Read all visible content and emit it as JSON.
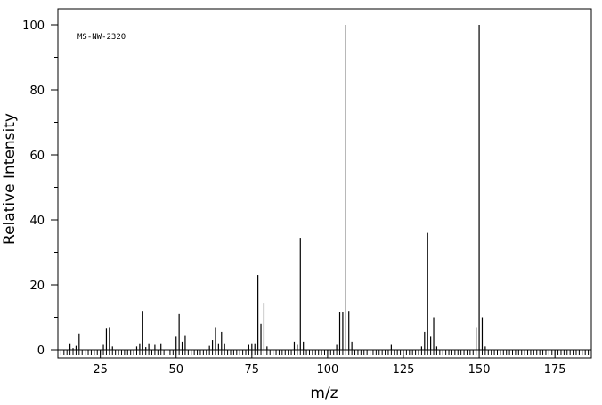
{
  "chart_data": {
    "type": "bar",
    "title": "",
    "annotation": "MS-NW-2320",
    "xlabel": "m/z",
    "ylabel": "Relative Intensity",
    "xlim": [
      11,
      187
    ],
    "ylim": [
      0,
      105
    ],
    "x_ticks": [
      25,
      50,
      75,
      100,
      125,
      150,
      175
    ],
    "y_ticks": [
      0,
      20,
      40,
      60,
      80,
      100
    ],
    "grid": false,
    "peaks": [
      {
        "mz": 15,
        "intensity": 2.0
      },
      {
        "mz": 16,
        "intensity": 0.5
      },
      {
        "mz": 17,
        "intensity": 1.2
      },
      {
        "mz": 18,
        "intensity": 5.0
      },
      {
        "mz": 26,
        "intensity": 1.5
      },
      {
        "mz": 27,
        "intensity": 6.5
      },
      {
        "mz": 28,
        "intensity": 7.0
      },
      {
        "mz": 29,
        "intensity": 1.0
      },
      {
        "mz": 37,
        "intensity": 1.0
      },
      {
        "mz": 38,
        "intensity": 2.0
      },
      {
        "mz": 39,
        "intensity": 12.0
      },
      {
        "mz": 40,
        "intensity": 0.8
      },
      {
        "mz": 41,
        "intensity": 2.0
      },
      {
        "mz": 43,
        "intensity": 1.5
      },
      {
        "mz": 45,
        "intensity": 2.0
      },
      {
        "mz": 50,
        "intensity": 4.0
      },
      {
        "mz": 51,
        "intensity": 11.0
      },
      {
        "mz": 52,
        "intensity": 2.5
      },
      {
        "mz": 53,
        "intensity": 4.5
      },
      {
        "mz": 61,
        "intensity": 1.2
      },
      {
        "mz": 62,
        "intensity": 3.0
      },
      {
        "mz": 63,
        "intensity": 7.0
      },
      {
        "mz": 64,
        "intensity": 2.0
      },
      {
        "mz": 65,
        "intensity": 5.5
      },
      {
        "mz": 66,
        "intensity": 2.0
      },
      {
        "mz": 74,
        "intensity": 1.5
      },
      {
        "mz": 75,
        "intensity": 2.0
      },
      {
        "mz": 76,
        "intensity": 2.0
      },
      {
        "mz": 77,
        "intensity": 23.0
      },
      {
        "mz": 78,
        "intensity": 8.0
      },
      {
        "mz": 79,
        "intensity": 14.5
      },
      {
        "mz": 80,
        "intensity": 1.0
      },
      {
        "mz": 89,
        "intensity": 2.5
      },
      {
        "mz": 90,
        "intensity": 1.5
      },
      {
        "mz": 91,
        "intensity": 34.5
      },
      {
        "mz": 92,
        "intensity": 2.5
      },
      {
        "mz": 103,
        "intensity": 1.5
      },
      {
        "mz": 104,
        "intensity": 11.5
      },
      {
        "mz": 105,
        "intensity": 11.5
      },
      {
        "mz": 106,
        "intensity": 100
      },
      {
        "mz": 107,
        "intensity": 12.0
      },
      {
        "mz": 108,
        "intensity": 2.5
      },
      {
        "mz": 121,
        "intensity": 1.5
      },
      {
        "mz": 131,
        "intensity": 1.0
      },
      {
        "mz": 132,
        "intensity": 5.5
      },
      {
        "mz": 133,
        "intensity": 36.0
      },
      {
        "mz": 134,
        "intensity": 4.0
      },
      {
        "mz": 135,
        "intensity": 10.0
      },
      {
        "mz": 136,
        "intensity": 1.0
      },
      {
        "mz": 149,
        "intensity": 7.0
      },
      {
        "mz": 150,
        "intensity": 100
      },
      {
        "mz": 151,
        "intensity": 10.0
      },
      {
        "mz": 152,
        "intensity": 1.0
      }
    ]
  }
}
